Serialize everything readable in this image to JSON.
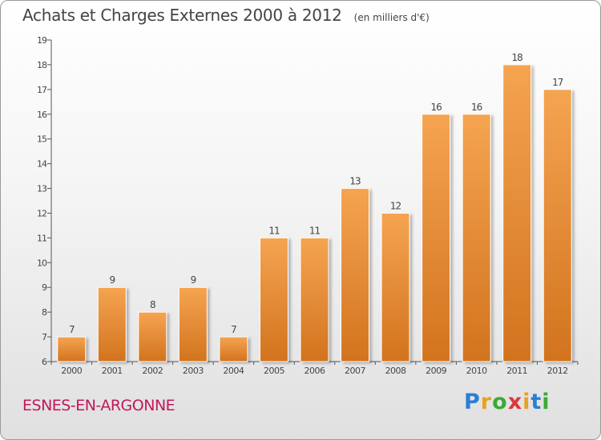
{
  "title": "Achats et Charges Externes 2000 à 2012",
  "unit_note": "(en milliers d'€)",
  "commune": "ESNES-EN-ARGONNE",
  "logo": {
    "letters": [
      "P",
      "r",
      "o",
      "x",
      "i",
      "t",
      "i"
    ],
    "colors": [
      "#2a7fd4",
      "#e8a21f",
      "#3aaa35",
      "#d93a3a",
      "#e8a21f",
      "#2a7fd4",
      "#3aaa35"
    ]
  },
  "colors": {
    "bar_light": "#f5a451",
    "bar_dark": "#d2731e",
    "axis": "#555555",
    "text": "#444444",
    "commune": "#c2185b"
  },
  "chart_data": {
    "type": "bar",
    "categories": [
      "2000",
      "2001",
      "2002",
      "2003",
      "2004",
      "2005",
      "2006",
      "2007",
      "2008",
      "2009",
      "2010",
      "2011",
      "2012"
    ],
    "values": [
      7,
      9,
      8,
      9,
      7,
      11,
      11,
      13,
      12,
      16,
      16,
      18,
      17
    ],
    "yticks": [
      6,
      7,
      8,
      9,
      10,
      11,
      12,
      13,
      14,
      15,
      16,
      17,
      18,
      19
    ],
    "ylim": [
      6,
      19
    ],
    "grid": false,
    "xlabel": "",
    "ylabel": ""
  }
}
